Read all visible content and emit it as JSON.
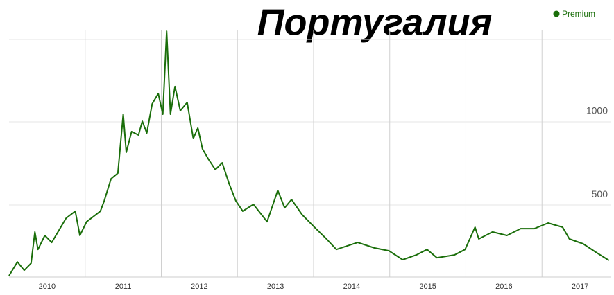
{
  "chart_data": {
    "type": "line",
    "title": "Португалия",
    "x": [
      2010.0,
      2010.11,
      2010.2,
      2010.29,
      2010.34,
      2010.38,
      2010.47,
      2010.56,
      2010.75,
      2010.87,
      2010.93,
      2011.02,
      2011.2,
      2011.25,
      2011.34,
      2011.43,
      2011.5,
      2011.54,
      2011.61,
      2011.7,
      2011.75,
      2011.81,
      2011.88,
      2011.96,
      2012.02,
      2012.07,
      2012.12,
      2012.18,
      2012.25,
      2012.34,
      2012.42,
      2012.48,
      2012.54,
      2012.62,
      2012.71,
      2012.8,
      2012.89,
      2012.98,
      2013.07,
      2013.21,
      2013.39,
      2013.53,
      2013.62,
      2013.71,
      2013.85,
      2014.03,
      2014.17,
      2014.3,
      2014.44,
      2014.58,
      2014.8,
      2014.99,
      2015.17,
      2015.35,
      2015.49,
      2015.62,
      2015.85,
      2015.99,
      2016.12,
      2016.17,
      2016.35,
      2016.54,
      2016.72,
      2016.9,
      2017.08,
      2017.27,
      2017.36,
      2017.54,
      2017.72,
      2017.88
    ],
    "series": [
      {
        "name": "Premium",
        "color": "#1a6e0a",
        "values": [
          75,
          158,
          108,
          150,
          338,
          233,
          317,
          275,
          421,
          463,
          317,
          400,
          463,
          525,
          658,
          692,
          1046,
          817,
          942,
          921,
          1004,
          933,
          1108,
          1171,
          1046,
          1546,
          1046,
          1213,
          1067,
          1117,
          900,
          963,
          838,
          775,
          713,
          754,
          629,
          525,
          463,
          504,
          400,
          588,
          483,
          533,
          442,
          358,
          296,
          233,
          254,
          275,
          242,
          225,
          171,
          200,
          233,
          183,
          200,
          233,
          367,
          296,
          338,
          317,
          358,
          358,
          392,
          367,
          296,
          267,
          213,
          167
        ]
      }
    ],
    "xlim": [
      2010.0,
      2017.9
    ],
    "xticks": [
      {
        "value": 2010.5,
        "label": "2010"
      },
      {
        "value": 2011.5,
        "label": "2011"
      },
      {
        "value": 2012.5,
        "label": "2012"
      },
      {
        "value": 2013.5,
        "label": "2013"
      },
      {
        "value": 2014.5,
        "label": "2014"
      },
      {
        "value": 2015.5,
        "label": "2015"
      },
      {
        "value": 2016.5,
        "label": "2016"
      },
      {
        "value": 2017.5,
        "label": "2017"
      }
    ],
    "ylim": [
      67,
      1550
    ],
    "yticks": [
      500,
      1000
    ],
    "grid": true
  }
}
